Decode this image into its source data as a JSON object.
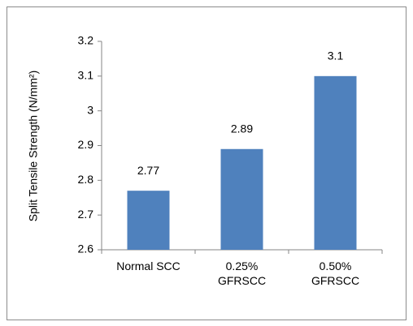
{
  "chart_data": {
    "type": "bar",
    "y_label": "Split Tensile Strength (N/mm²)",
    "categories": [
      "Normal SCC",
      "0.25%\nGFRSCC",
      "0.50%\nGFRSCC"
    ],
    "values": [
      2.77,
      2.89,
      3.1
    ],
    "color": "#4f81bd",
    "ylim": [
      2.6,
      3.2
    ],
    "yticks": [
      2.6,
      2.7,
      2.8,
      2.9,
      3,
      3.1,
      3.2
    ]
  }
}
